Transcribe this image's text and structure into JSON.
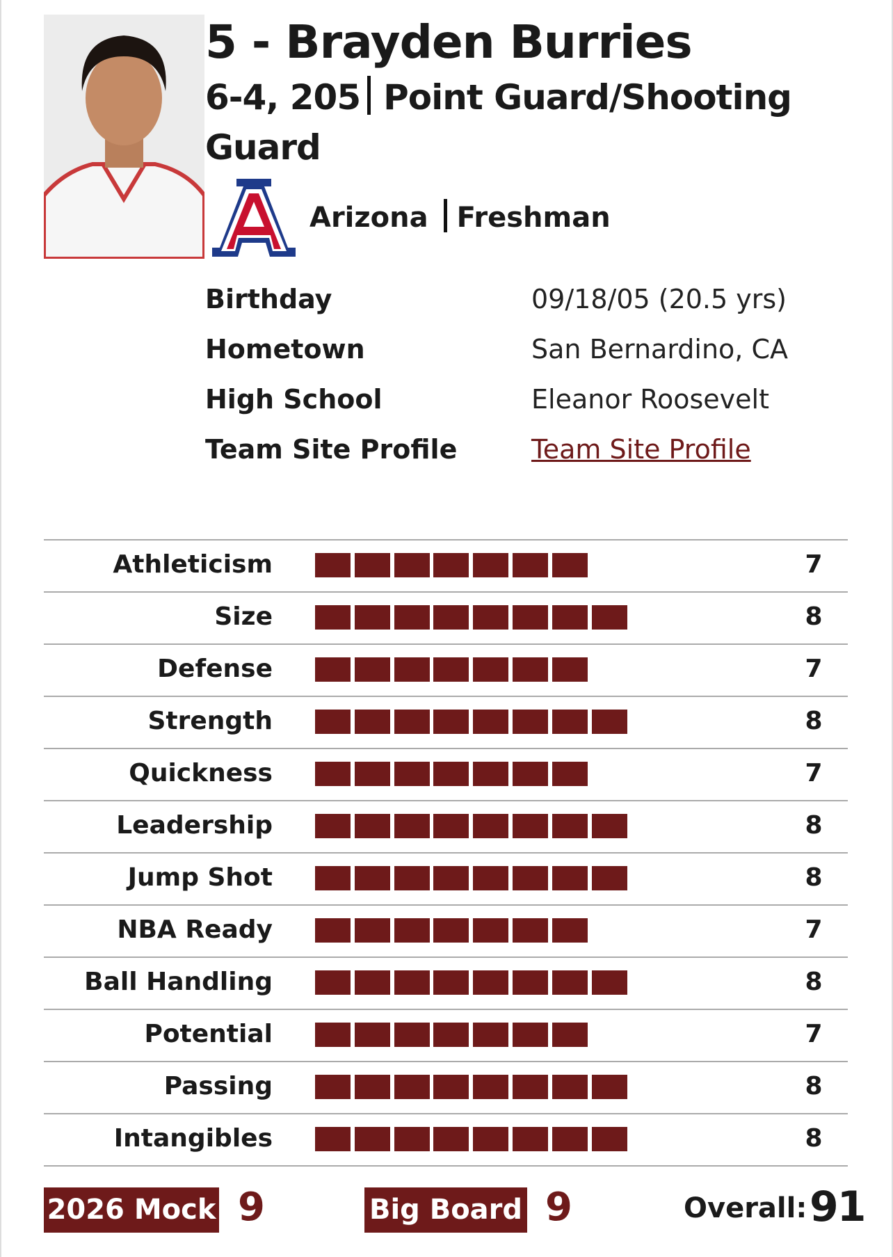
{
  "header": {
    "name": "5 - Brayden Burries",
    "measurements": "6-4, 205",
    "position": "Point Guard/Shooting Guard",
    "team": "Arizona",
    "class": "Freshman"
  },
  "info": [
    {
      "label": "Birthday",
      "value": "09/18/05 (20.5 yrs)"
    },
    {
      "label": "Hometown",
      "value": "San Bernardino, CA"
    },
    {
      "label": "High School",
      "value": "Eleanor Roosevelt"
    },
    {
      "label": "Team Site Profile",
      "value": "Team Site Profile"
    }
  ],
  "ratings": [
    {
      "label": "Athleticism",
      "value": 7
    },
    {
      "label": "Size",
      "value": 8
    },
    {
      "label": "Defense",
      "value": 7
    },
    {
      "label": "Strength",
      "value": 8
    },
    {
      "label": "Quickness",
      "value": 7
    },
    {
      "label": "Leadership",
      "value": 8
    },
    {
      "label": "Jump Shot",
      "value": 8
    },
    {
      "label": "NBA Ready",
      "value": 7
    },
    {
      "label": "Ball Handling",
      "value": 8
    },
    {
      "label": "Potential",
      "value": 7
    },
    {
      "label": "Passing",
      "value": 8
    },
    {
      "label": "Intangibles",
      "value": 8
    }
  ],
  "footer": {
    "mock_label": "2026 Mock",
    "mock_value": 9,
    "board_label": "Big Board",
    "board_value": 9,
    "overall_label": "Overall:",
    "overall_value": 91
  }
}
